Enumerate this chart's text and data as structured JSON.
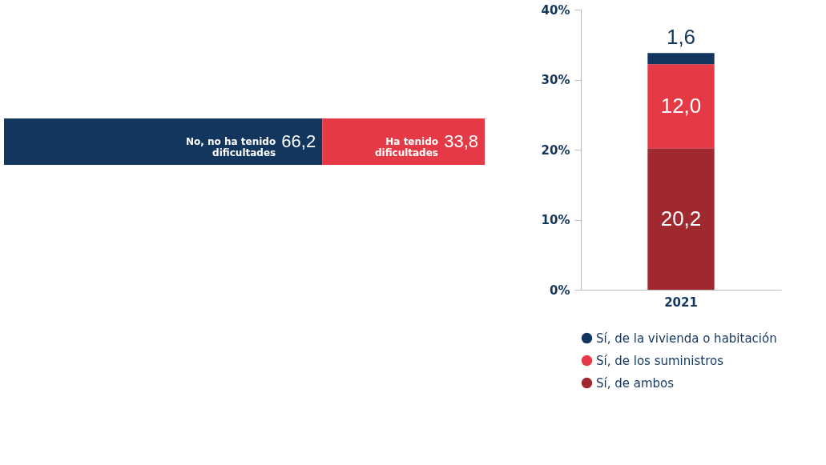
{
  "chart_data": [
    {
      "type": "bar",
      "orientation": "horizontal",
      "stacked": true,
      "categories": [
        null
      ],
      "tick_labels": false,
      "legend": false,
      "series": [
        {
          "name": "No, no ha tenido dificultades",
          "color": "#12365e",
          "values": [
            66.2
          ],
          "value_labels": [
            "66,2"
          ]
        },
        {
          "name": "Ha tenido dificultades",
          "color": "#e63946",
          "values": [
            33.8
          ],
          "value_labels": [
            "33,8"
          ]
        }
      ]
    },
    {
      "type": "bar",
      "stacked": true,
      "categories": [
        "2021"
      ],
      "ylim": [
        0,
        40
      ],
      "yticks": [
        {
          "value": 0,
          "label": "0%"
        },
        {
          "value": 10,
          "label": "10%"
        },
        {
          "value": 20,
          "label": "20%"
        },
        {
          "value": 30,
          "label": "30%"
        },
        {
          "value": 40,
          "label": "40%"
        }
      ],
      "grid": false,
      "legend": "bottom",
      "series": [
        {
          "name": "Sí, de ambos",
          "color": "#a0292f",
          "values": [
            20.2
          ],
          "value_labels": [
            "20,2"
          ]
        },
        {
          "name": "Sí, de los suministros",
          "color": "#e63946",
          "values": [
            12.0
          ],
          "value_labels": [
            "12,0"
          ]
        },
        {
          "name": "Sí, de la vivienda o habitación",
          "color": "#12365e",
          "values": [
            1.6
          ],
          "value_labels": [
            "1,6"
          ]
        }
      ]
    }
  ]
}
